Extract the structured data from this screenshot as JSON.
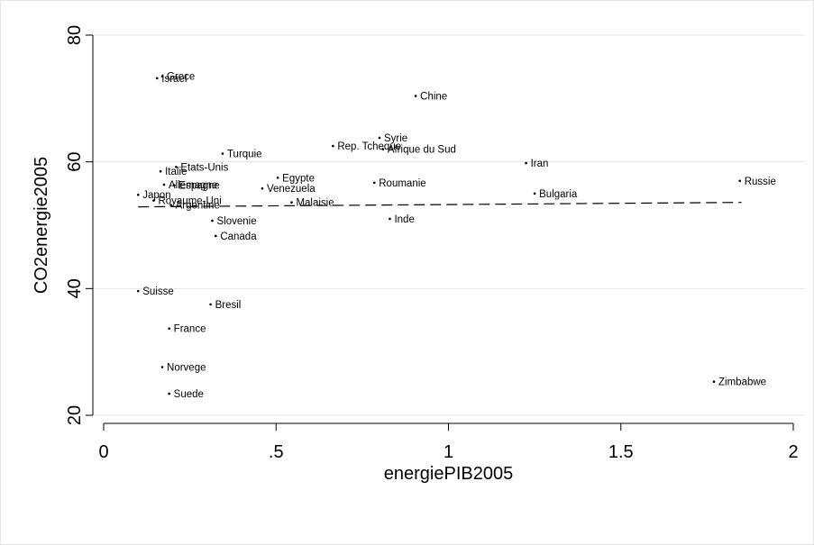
{
  "chart_data": {
    "type": "scatter",
    "xlabel": "energiePIB2005",
    "ylabel": "CO2energie2005",
    "xlim": [
      0,
      2
    ],
    "ylim": [
      20,
      80
    ],
    "x_ticks": [
      {
        "value": 0,
        "label": "0"
      },
      {
        "value": 0.5,
        "label": ".5"
      },
      {
        "value": 1,
        "label": "1"
      },
      {
        "value": 1.5,
        "label": "1.5"
      },
      {
        "value": 2,
        "label": "2"
      }
    ],
    "y_ticks": [
      {
        "value": 20,
        "label": "20"
      },
      {
        "value": 40,
        "label": "40"
      },
      {
        "value": 60,
        "label": "60"
      },
      {
        "value": 80,
        "label": "80"
      }
    ],
    "grid": true,
    "points": [
      {
        "label": "Grece",
        "x": 0.17,
        "y": 73.5
      },
      {
        "label": "Israel",
        "x": 0.155,
        "y": 73.2
      },
      {
        "label": "Chine",
        "x": 0.905,
        "y": 70.4
      },
      {
        "label": "Syrie",
        "x": 0.8,
        "y": 63.8
      },
      {
        "label": "Rep. Tcheque",
        "x": 0.665,
        "y": 62.5
      },
      {
        "label": "Afrique du Sud",
        "x": 0.81,
        "y": 62.0
      },
      {
        "label": "Turquie",
        "x": 0.345,
        "y": 61.3
      },
      {
        "label": "Iran",
        "x": 1.225,
        "y": 59.8
      },
      {
        "label": "Etats-Unis",
        "x": 0.21,
        "y": 59.2
      },
      {
        "label": "Italie",
        "x": 0.165,
        "y": 58.5
      },
      {
        "label": "Egypte",
        "x": 0.505,
        "y": 57.5
      },
      {
        "label": "Russie",
        "x": 1.845,
        "y": 57.0
      },
      {
        "label": "Roumanie",
        "x": 0.785,
        "y": 56.7
      },
      {
        "label": "Allemagne",
        "x": 0.175,
        "y": 56.4
      },
      {
        "label": "Espagne",
        "x": 0.205,
        "y": 56.3
      },
      {
        "label": "Venezuela",
        "x": 0.46,
        "y": 55.8
      },
      {
        "label": "Bulgaria",
        "x": 1.25,
        "y": 55.0
      },
      {
        "label": "Japon",
        "x": 0.1,
        "y": 54.8
      },
      {
        "label": "Royaume-Uni",
        "x": 0.145,
        "y": 53.9
      },
      {
        "label": "Malaisie",
        "x": 0.545,
        "y": 53.6
      },
      {
        "label": "Argentine",
        "x": 0.195,
        "y": 53.2
      },
      {
        "label": "Inde",
        "x": 0.83,
        "y": 51.0
      },
      {
        "label": "Slovenie",
        "x": 0.315,
        "y": 50.7
      },
      {
        "label": "Canada",
        "x": 0.325,
        "y": 48.3
      },
      {
        "label": "Suisse",
        "x": 0.1,
        "y": 39.6
      },
      {
        "label": "Bresil",
        "x": 0.31,
        "y": 37.5
      },
      {
        "label": "France",
        "x": 0.19,
        "y": 33.7
      },
      {
        "label": "Norvege",
        "x": 0.17,
        "y": 27.6
      },
      {
        "label": "Zimbabwe",
        "x": 1.77,
        "y": 25.3
      },
      {
        "label": "Suede",
        "x": 0.19,
        "y": 23.4
      }
    ],
    "fit_line": {
      "style": "dashed",
      "x": [
        0.1,
        1.85
      ],
      "y": [
        52.9,
        53.6
      ]
    }
  }
}
